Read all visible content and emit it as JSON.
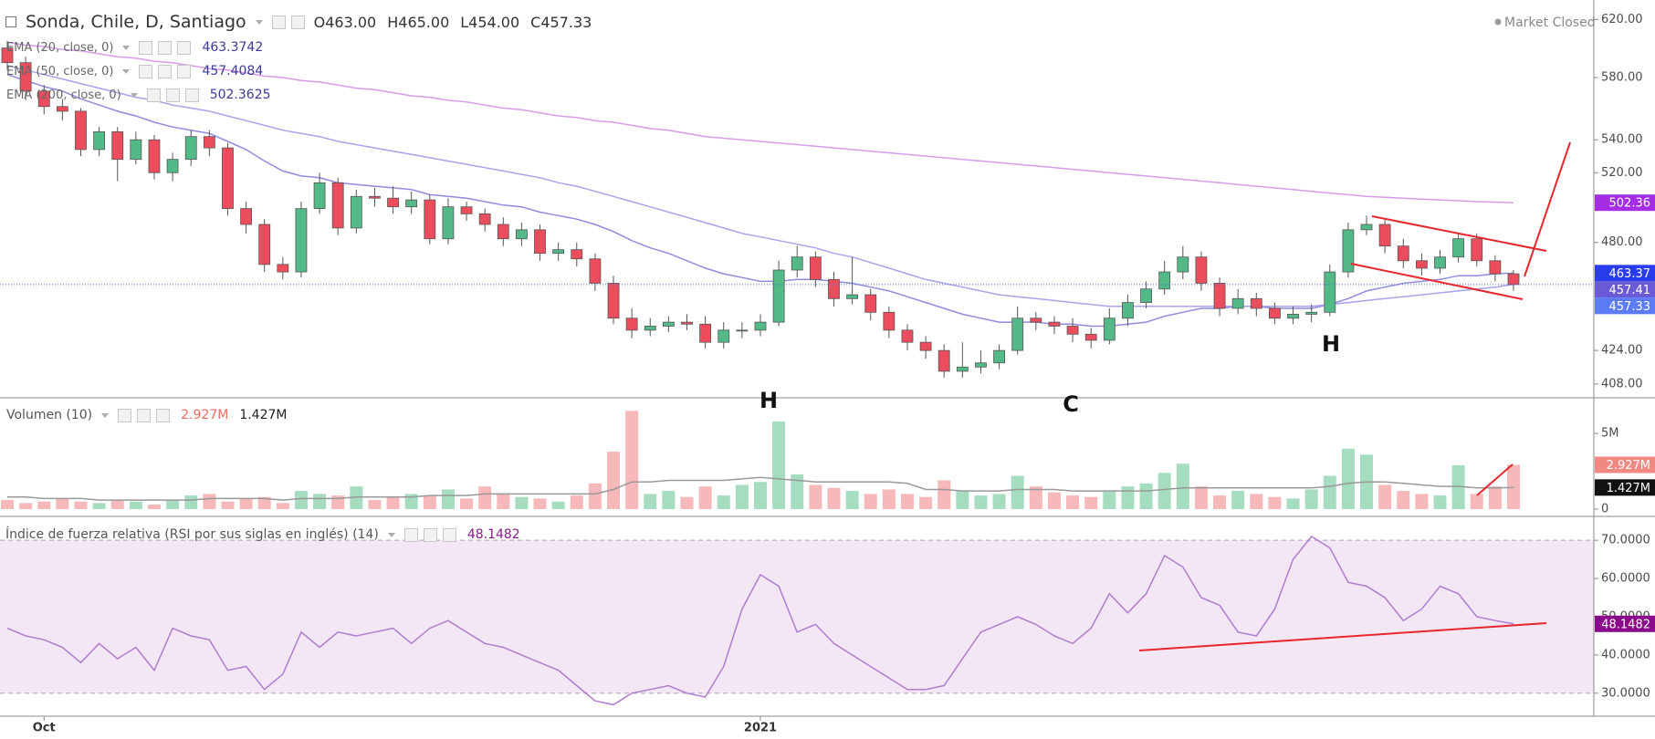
{
  "chart_data": [
    {
      "type": "candlestick",
      "title": "Sonda, Chile, D, Santiago",
      "ohlc_labels": [
        "O463.00",
        "H465.00",
        "L454.00",
        "C457.33"
      ],
      "status": "Market Closed",
      "categories": [
        null,
        null,
        "Oct",
        null,
        null,
        null,
        null,
        null,
        null,
        null,
        null,
        null,
        null,
        null,
        null,
        null,
        null,
        null,
        null,
        null,
        null,
        null,
        null,
        null,
        null,
        null,
        null,
        null,
        null,
        null,
        null,
        null,
        null,
        null,
        null,
        null,
        null,
        null,
        null,
        null,
        null,
        "2021",
        null,
        null,
        null,
        null,
        null,
        null,
        null,
        null,
        null,
        null,
        null,
        null,
        null,
        null,
        null,
        null,
        null,
        null,
        null,
        null,
        null,
        null,
        null,
        null,
        null,
        null,
        null,
        null,
        null,
        null,
        null,
        null,
        null,
        null,
        null,
        null,
        null,
        null,
        null,
        null,
        null
      ],
      "open": [
        600,
        590,
        571,
        561,
        558,
        534,
        545,
        528,
        540,
        520,
        528,
        542,
        535,
        499,
        490,
        468,
        464,
        499,
        514,
        488,
        506,
        505,
        500,
        504,
        482,
        500,
        496,
        490,
        482,
        487,
        474,
        476,
        471,
        458,
        440,
        434,
        436,
        438,
        437,
        428,
        434,
        434,
        438,
        465,
        472,
        460,
        450,
        452,
        443,
        434,
        428,
        424,
        414,
        416,
        418,
        424,
        440,
        438,
        436,
        432,
        429,
        440,
        448,
        455,
        464,
        472,
        458,
        445,
        450,
        445,
        440,
        442,
        443,
        464,
        487,
        490,
        478,
        470,
        466,
        472,
        482,
        470,
        463
      ],
      "high": [
        605,
        594,
        575,
        566,
        560,
        548,
        548,
        545,
        543,
        532,
        546,
        546,
        538,
        503,
        493,
        472,
        503,
        520,
        517,
        510,
        511,
        512,
        509,
        507,
        505,
        503,
        499,
        494,
        491,
        490,
        480,
        480,
        474,
        462,
        445,
        440,
        441,
        442,
        441,
        438,
        438,
        442,
        470,
        478,
        475,
        464,
        472,
        455,
        446,
        437,
        431,
        427,
        428,
        424,
        427,
        446,
        443,
        441,
        440,
        435,
        445,
        452,
        459,
        470,
        478,
        475,
        461,
        455,
        453,
        448,
        446,
        447,
        468,
        491,
        495,
        493,
        482,
        474,
        476,
        485,
        485,
        473,
        465
      ],
      "low": [
        585,
        565,
        556,
        552,
        530,
        530,
        515,
        525,
        516,
        515,
        524,
        530,
        495,
        485,
        464,
        460,
        461,
        496,
        484,
        485,
        500,
        496,
        496,
        479,
        479,
        492,
        486,
        478,
        478,
        470,
        470,
        467,
        454,
        437,
        430,
        431,
        433,
        434,
        425,
        425,
        430,
        431,
        436,
        461,
        456,
        446,
        447,
        439,
        430,
        424,
        420,
        411,
        411,
        413,
        415,
        422,
        434,
        432,
        428,
        425,
        427,
        436,
        445,
        452,
        460,
        454,
        441,
        442,
        441,
        437,
        437,
        438,
        441,
        461,
        484,
        474,
        466,
        462,
        463,
        469,
        467,
        459,
        454
      ],
      "close": [
        590,
        571,
        561,
        558,
        534,
        545,
        528,
        540,
        520,
        528,
        542,
        535,
        499,
        490,
        468,
        464,
        499,
        514,
        488,
        506,
        505,
        500,
        504,
        482,
        500,
        496,
        490,
        482,
        487,
        474,
        476,
        471,
        458,
        440,
        434,
        436,
        438,
        437,
        428,
        434,
        434,
        438,
        465,
        472,
        460,
        450,
        452,
        443,
        434,
        428,
        424,
        414,
        416,
        418,
        424,
        440,
        438,
        436,
        432,
        429,
        440,
        448,
        455,
        464,
        472,
        458,
        445,
        450,
        445,
        440,
        442,
        443,
        464,
        487,
        490,
        478,
        470,
        466,
        472,
        482,
        470,
        463,
        457.33
      ],
      "up_color": "#53b987",
      "down_color": "#eb4d5c",
      "last_label": "457.33",
      "last_color": "#5c7cf7",
      "last_line_color": "#4a6bd6",
      "annotations": [
        "H",
        "C",
        "H"
      ],
      "log_scale": true,
      "ylim": [
        402,
        634
      ],
      "yticks": [
        {
          "value": 408,
          "label": "408.00"
        },
        {
          "value": 424,
          "label": "424.00"
        },
        {
          "value": 480,
          "label": "480.00"
        },
        {
          "value": 520,
          "label": "520.00"
        },
        {
          "value": 540,
          "label": "540.00"
        },
        {
          "value": 580,
          "label": "580.00"
        },
        {
          "value": 620,
          "label": "620.00"
        }
      ],
      "series": [
        {
          "name": "EMA (20, close, 0)",
          "color": "#8f8be0",
          "legend_value": "463.3742",
          "last_label": "463.37",
          "badge_color": "#2a3cf0",
          "values": [
            582,
            578,
            574,
            571,
            566,
            562,
            558,
            555,
            551,
            548,
            546,
            544,
            539,
            534,
            527,
            521,
            518,
            517,
            514,
            513,
            512,
            511,
            510,
            507,
            506,
            505,
            503,
            501,
            500,
            497,
            495,
            493,
            490,
            486,
            481,
            477,
            474,
            470,
            466,
            463,
            461,
            459,
            459,
            460,
            460,
            459,
            458,
            456,
            454,
            451,
            448,
            445,
            442,
            440,
            438,
            438,
            438,
            437,
            437,
            436,
            436,
            437,
            438,
            441,
            443,
            445,
            445,
            446,
            446,
            445,
            445,
            445,
            447,
            450,
            454,
            456,
            458,
            459,
            460,
            462,
            462,
            463,
            463.3742
          ]
        },
        {
          "name": "EMA (50, close, 0)",
          "color": "#a9a2ec",
          "legend_value": "457.4084",
          "last_label": "457.41",
          "badge_color": "#6b5ad8",
          "values": [
            588,
            585,
            582,
            579,
            576,
            573,
            570,
            567,
            565,
            562,
            560,
            558,
            555,
            552,
            549,
            546,
            544,
            542,
            539,
            537,
            535,
            533,
            531,
            529,
            527,
            525,
            523,
            521,
            519,
            517,
            514,
            512,
            509,
            506,
            503,
            500,
            497,
            494,
            491,
            488,
            485,
            483,
            481,
            479,
            477,
            474,
            472,
            469,
            466,
            463,
            460,
            458,
            456,
            454,
            452,
            451,
            450,
            449,
            448,
            447,
            446,
            446,
            446,
            446,
            446,
            446,
            446,
            446,
            446,
            446,
            446,
            446,
            447,
            448,
            449,
            450,
            451,
            452,
            453,
            454,
            455,
            456,
            457.4084
          ]
        },
        {
          "name": "EMA (200, close, 0)",
          "color": "#d99be8",
          "legend_value": "502.3625",
          "last_label": "502.36",
          "badge_color": "#a52de6",
          "values": [
            604,
            602,
            601,
            599,
            598,
            596,
            594,
            593,
            591,
            590,
            588,
            586,
            585,
            583,
            581,
            580,
            578,
            577,
            575,
            573,
            572,
            570,
            568,
            567,
            565,
            564,
            562,
            560,
            559,
            557,
            555,
            554,
            552,
            551,
            549,
            547,
            546,
            544,
            542,
            541,
            540,
            539,
            538,
            537,
            536,
            535,
            534,
            533,
            532,
            531,
            530,
            529,
            528,
            527,
            526,
            525,
            524,
            523,
            522,
            521,
            520,
            519,
            518,
            517,
            516,
            515,
            514,
            513,
            512,
            511,
            510,
            509,
            508,
            507,
            506,
            505.5,
            505,
            504.5,
            504,
            503.5,
            503,
            502.7,
            502.36
          ]
        }
      ]
    },
    {
      "type": "bar",
      "title": "Volumen (10)",
      "values": [
        0.6,
        0.4,
        0.5,
        0.7,
        0.5,
        0.4,
        0.6,
        0.5,
        0.3,
        0.6,
        0.9,
        1.0,
        0.5,
        0.7,
        0.8,
        0.4,
        1.2,
        1.0,
        0.9,
        1.5,
        0.6,
        0.8,
        1.0,
        0.9,
        1.3,
        0.7,
        1.5,
        1.0,
        0.8,
        0.7,
        0.5,
        0.9,
        1.7,
        3.8,
        6.5,
        1.0,
        1.2,
        0.8,
        1.5,
        0.9,
        1.6,
        1.8,
        5.8,
        2.3,
        1.6,
        1.4,
        1.2,
        1.0,
        1.3,
        1.0,
        0.8,
        1.9,
        1.2,
        0.9,
        1.0,
        2.2,
        1.5,
        1.1,
        0.9,
        0.8,
        1.2,
        1.5,
        1.7,
        2.4,
        3.0,
        1.5,
        0.9,
        1.2,
        1.0,
        0.8,
        0.7,
        1.3,
        2.2,
        4.0,
        3.6,
        1.6,
        1.2,
        1.0,
        0.9,
        2.9,
        1.0,
        1.5,
        2.927
      ],
      "value_label": "2.927M",
      "up_color": "#a6dcc0",
      "down_color": "#f6b8b8",
      "badge_color": "#f28882",
      "ma": {
        "values": [
          0.8,
          0.8,
          0.7,
          0.7,
          0.7,
          0.6,
          0.6,
          0.6,
          0.6,
          0.6,
          0.6,
          0.7,
          0.7,
          0.7,
          0.7,
          0.6,
          0.7,
          0.7,
          0.7,
          0.8,
          0.8,
          0.8,
          0.8,
          0.9,
          0.9,
          0.9,
          1.0,
          1.0,
          1.0,
          1.0,
          1.0,
          1.0,
          1.0,
          1.3,
          1.8,
          1.8,
          1.9,
          1.9,
          1.9,
          1.9,
          2.0,
          2.1,
          2.0,
          1.9,
          1.8,
          1.8,
          1.8,
          1.8,
          1.8,
          1.7,
          1.3,
          1.3,
          1.2,
          1.2,
          1.2,
          1.3,
          1.3,
          1.3,
          1.2,
          1.2,
          1.2,
          1.2,
          1.2,
          1.3,
          1.4,
          1.4,
          1.4,
          1.4,
          1.4,
          1.4,
          1.4,
          1.4,
          1.5,
          1.7,
          1.8,
          1.8,
          1.7,
          1.6,
          1.5,
          1.5,
          1.4,
          1.4,
          1.427
        ],
        "value_label": "1.427M",
        "color": "#999999",
        "badge_color": "#111111"
      },
      "ylim": [
        0,
        7
      ],
      "yticks": [
        0,
        {
          "value": 5,
          "label": "5M"
        }
      ]
    },
    {
      "type": "line",
      "title": "Índice de fuerza relativa (RSI por sus siglas en inglés) (14)",
      "legend_value": "48.1482",
      "last_label": "48.1482",
      "color": "#b07ccf",
      "badge_color": "#8b0a8b",
      "band_color": "#f3e6f5",
      "band": [
        30,
        70
      ],
      "values": [
        47,
        45,
        44,
        42,
        38,
        43,
        39,
        42,
        36,
        47,
        45,
        44,
        36,
        37,
        31,
        35,
        46,
        42,
        46,
        45,
        46,
        47,
        43,
        47,
        49,
        46,
        43,
        42,
        40,
        38,
        36,
        32,
        28,
        27,
        30,
        31,
        32,
        30,
        29,
        37,
        52,
        61,
        58,
        46,
        48,
        43,
        40,
        37,
        34,
        31,
        31,
        32,
        39,
        46,
        48,
        50,
        48,
        45,
        43,
        47,
        56,
        51,
        56,
        66,
        63,
        55,
        53,
        46,
        45,
        52,
        65,
        71,
        68,
        59,
        58,
        55,
        49,
        52,
        58,
        56,
        50,
        49,
        48.1482
      ],
      "ylim": [
        24,
        76
      ],
      "yticks": [
        {
          "value": 30,
          "label": "30.0000"
        },
        {
          "value": 40,
          "label": "40.0000"
        },
        {
          "value": 50,
          "label": "50.0000"
        },
        {
          "value": 60,
          "label": "60.0000"
        },
        {
          "value": 70,
          "label": "70.0000"
        }
      ]
    }
  ]
}
